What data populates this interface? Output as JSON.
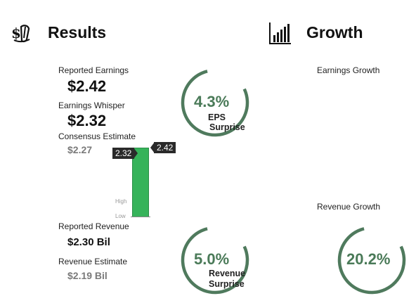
{
  "colors": {
    "gauge_ring": "#4f7a5d",
    "gauge_text": "#4a7a58",
    "bar_fill": "#36b35a",
    "flag_bg": "#2a2a2a"
  },
  "results": {
    "icon": "money-hand-icon",
    "title": "Results",
    "reported_earnings": {
      "label": "Reported Earnings",
      "value": "$2.42"
    },
    "earnings_whisper": {
      "label": "Earnings Whisper",
      "value": "$2.32"
    },
    "consensus_estimate": {
      "label": "Consensus Estimate",
      "value": "$2.27"
    },
    "reported_revenue": {
      "label": "Reported Revenue",
      "value": "$2.30 Bil"
    },
    "revenue_estimate": {
      "label": "Revenue Estimate",
      "value": "$2.19 Bil"
    },
    "range_bar": {
      "whisper_flag": "2.32",
      "reported_flag": "2.42",
      "high_label": "High",
      "low_label": "Low"
    },
    "eps_surprise": {
      "value": "4.3%",
      "line1": "EPS",
      "line2": "Surprise",
      "fraction": 0.78
    },
    "revenue_surprise": {
      "value": "5.0%",
      "line1": "Revenue",
      "line2": "Surprise",
      "fraction": 0.78
    }
  },
  "growth": {
    "icon": "bar-chart-icon",
    "title": "Growth",
    "earnings_growth": {
      "label": "Earnings Growth"
    },
    "revenue_growth": {
      "label": "Revenue Growth",
      "value": "20.2%",
      "fraction": 0.78
    }
  }
}
